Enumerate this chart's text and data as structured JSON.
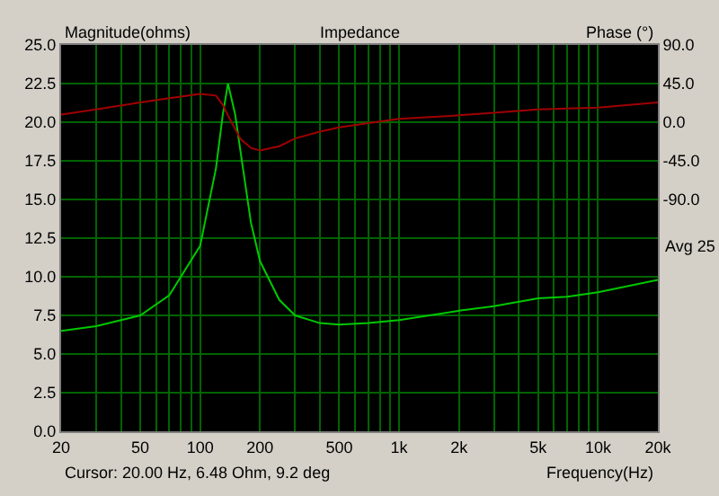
{
  "chart_data": {
    "type": "line",
    "title": "Impedance",
    "xlabel": "Frequency(Hz)",
    "ylabel": "Magnitude(ohms)",
    "y2label": "Phase (°)",
    "log": "x",
    "grid": true,
    "line_style": "solid",
    "marker": "none",
    "x": [
      20,
      30,
      50,
      70,
      100,
      120,
      130,
      138,
      150,
      160,
      180,
      200,
      250,
      300,
      400,
      500,
      700,
      1000,
      2000,
      3000,
      5000,
      7000,
      10000,
      20000
    ],
    "series": [
      {
        "color": "#00c800",
        "values": [
          6.5,
          6.8,
          7.5,
          8.8,
          12,
          17,
          20.5,
          22.5,
          20.5,
          18,
          13.5,
          11,
          8.5,
          7.5,
          7.0,
          6.9,
          7.0,
          7.2,
          7.8,
          8.1,
          8.6,
          8.7,
          9.0,
          9.8
        ]
      },
      {
        "color": "#a00000",
        "axis": "y2",
        "values": [
          9,
          15,
          23,
          28,
          33,
          31,
          20,
          8,
          -8,
          -20,
          -30,
          -33,
          -28,
          -19,
          -11,
          -6,
          -1,
          4,
          8,
          11,
          15,
          16,
          17,
          23
        ]
      }
    ],
    "xlim": [
      20,
      20000
    ],
    "xticks": [
      20,
      {
        "value": 30,
        "label": null
      },
      {
        "value": 40,
        "label": null
      },
      50,
      {
        "value": 60,
        "label": null
      },
      {
        "value": 70,
        "label": null
      },
      {
        "value": 80,
        "label": null
      },
      {
        "value": 90,
        "label": null
      },
      100,
      200,
      {
        "value": 300,
        "label": null
      },
      {
        "value": 400,
        "label": null
      },
      500,
      {
        "value": 600,
        "label": null
      },
      {
        "value": 700,
        "label": null
      },
      {
        "value": 800,
        "label": null
      },
      {
        "value": 900,
        "label": null
      },
      {
        "value": 1000,
        "label": "1k"
      },
      {
        "value": 2000,
        "label": "2k"
      },
      {
        "value": 3000,
        "label": null
      },
      {
        "value": 4000,
        "label": null
      },
      {
        "value": 5000,
        "label": "5k"
      },
      {
        "value": 6000,
        "label": null
      },
      {
        "value": 7000,
        "label": null
      },
      {
        "value": 8000,
        "label": null
      },
      {
        "value": 9000,
        "label": null
      },
      {
        "value": 10000,
        "label": "10k"
      },
      {
        "value": 20000,
        "label": "20k"
      }
    ],
    "ylim": [
      0,
      25
    ],
    "yticks": [
      {
        "value": 0,
        "label": "0.0"
      },
      2.5,
      {
        "value": 5,
        "label": "5.0"
      },
      7.5,
      {
        "value": 10,
        "label": "10.0"
      },
      12.5,
      {
        "value": 15,
        "label": "15.0"
      },
      17.5,
      {
        "value": 20,
        "label": "20.0"
      },
      22.5,
      {
        "value": 25,
        "label": "25.0"
      }
    ],
    "y2lim": [
      -360,
      90
    ],
    "y2ticks": [
      {
        "value": 90,
        "label": "90.0"
      },
      {
        "value": 45,
        "label": "45.0"
      },
      {
        "value": 0,
        "label": "0.0"
      },
      {
        "value": -45,
        "label": "-45.0"
      },
      {
        "value": -90,
        "label": "-90.0"
      }
    ],
    "annotations": [
      "Avg 25",
      "Cursor: 20.00 Hz, 6.48 Ohm, 9.2 deg"
    ]
  }
}
